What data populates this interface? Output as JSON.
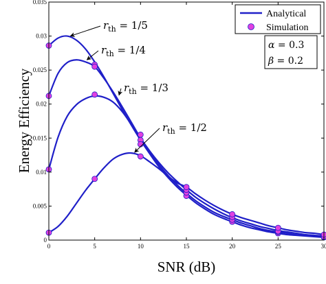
{
  "chart_data": {
    "type": "line",
    "xlabel": "SNR (dB)",
    "ylabel": "Energy Efficiency",
    "xlim": [
      0,
      30
    ],
    "ylim": [
      0,
      0.035
    ],
    "xticks": [
      "0",
      "5",
      "10",
      "15",
      "20",
      "25",
      "30"
    ],
    "yticks": [
      "0",
      "0.005",
      "0.01",
      "0.015",
      "0.02",
      "0.025",
      "0.03",
      "0.035"
    ],
    "grid": false,
    "legend": {
      "position": "top-right",
      "entries": [
        {
          "label": "Analytical",
          "marker": "line",
          "color": "#1f1fc8"
        },
        {
          "label": "Simulation",
          "marker": "circle",
          "color": "#e040e0"
        }
      ]
    },
    "parameters": [
      {
        "symbol": "α",
        "value": "0.3"
      },
      {
        "symbol": "β",
        "value": "0.2"
      }
    ],
    "series": [
      {
        "annotation": {
          "symbol": "r",
          "sub": "th",
          "value": "1/5"
        },
        "analytical": {
          "x": [
            0,
            1,
            2,
            3,
            4,
            5,
            6,
            7,
            8,
            9,
            10,
            11,
            12,
            13,
            14,
            15,
            16,
            17,
            18,
            19,
            20,
            21,
            22,
            23,
            24,
            25,
            26,
            27,
            28,
            29,
            30
          ],
          "y": [
            0.0286,
            0.0297,
            0.03,
            0.0294,
            0.0281,
            0.0262,
            0.024,
            0.0216,
            0.0192,
            0.0169,
            0.0147,
            0.0127,
            0.0108,
            0.0092,
            0.0078,
            0.0066,
            0.0055,
            0.0046,
            0.0038,
            0.0032,
            0.0027,
            0.0022,
            0.0018,
            0.0015,
            0.0012,
            0.001,
            0.0008,
            0.0007,
            0.0006,
            0.0005,
            0.0004
          ]
        },
        "simulation": {
          "x": [
            0,
            5,
            10,
            15,
            20,
            25,
            30
          ],
          "y": [
            0.0286,
            0.0258,
            0.0155,
            0.0065,
            0.0027,
            0.001,
            0.0004
          ]
        }
      },
      {
        "annotation": {
          "symbol": "r",
          "sub": "th",
          "value": "1/4"
        },
        "analytical": {
          "x": [
            0,
            1,
            2,
            3,
            4,
            5,
            6,
            7,
            8,
            9,
            10,
            11,
            12,
            13,
            14,
            15,
            16,
            17,
            18,
            19,
            20,
            21,
            22,
            23,
            24,
            25,
            26,
            27,
            28,
            29,
            30
          ],
          "y": [
            0.0212,
            0.0245,
            0.0261,
            0.0265,
            0.0262,
            0.0255,
            0.0238,
            0.0218,
            0.0196,
            0.0173,
            0.015,
            0.0129,
            0.0111,
            0.0095,
            0.0081,
            0.0069,
            0.0058,
            0.0049,
            0.0041,
            0.0035,
            0.003,
            0.0025,
            0.0021,
            0.0017,
            0.0014,
            0.0012,
            0.001,
            0.0008,
            0.0007,
            0.0006,
            0.0005
          ]
        },
        "simulation": {
          "x": [
            0,
            5,
            10,
            15,
            20,
            25,
            30
          ],
          "y": [
            0.0212,
            0.0255,
            0.0147,
            0.007,
            0.003,
            0.0012,
            0.0005
          ]
        }
      },
      {
        "annotation": {
          "symbol": "r",
          "sub": "th",
          "value": "1/3"
        },
        "analytical": {
          "x": [
            0,
            1,
            2,
            3,
            4,
            5,
            6,
            7,
            8,
            9,
            10,
            11,
            12,
            13,
            14,
            15,
            16,
            17,
            18,
            19,
            20,
            21,
            22,
            23,
            24,
            25,
            26,
            27,
            28,
            29,
            30
          ],
          "y": [
            0.0104,
            0.0151,
            0.0182,
            0.0199,
            0.0208,
            0.0212,
            0.021,
            0.0203,
            0.0189,
            0.017,
            0.015,
            0.0131,
            0.0114,
            0.0099,
            0.0086,
            0.0074,
            0.0063,
            0.0054,
            0.0046,
            0.0039,
            0.0033,
            0.0028,
            0.0024,
            0.002,
            0.0017,
            0.0014,
            0.0012,
            0.001,
            0.0008,
            0.0007,
            0.0006
          ]
        },
        "simulation": {
          "x": [
            0,
            5,
            10,
            15,
            20,
            25,
            30
          ],
          "y": [
            0.0104,
            0.0214,
            0.0141,
            0.0074,
            0.0034,
            0.0013,
            0.0005
          ]
        }
      },
      {
        "annotation": {
          "symbol": "r",
          "sub": "th",
          "value": "1/2"
        },
        "analytical": {
          "x": [
            0,
            1,
            2,
            3,
            4,
            5,
            6,
            7,
            8,
            9,
            10,
            11,
            12,
            13,
            14,
            15,
            16,
            17,
            18,
            19,
            20,
            21,
            22,
            23,
            24,
            25,
            26,
            27,
            28,
            29,
            30
          ],
          "y": [
            0.0011,
            0.002,
            0.0035,
            0.0054,
            0.0073,
            0.009,
            0.0106,
            0.0119,
            0.0126,
            0.0128,
            0.0124,
            0.0115,
            0.0105,
            0.0094,
            0.0084,
            0.0078,
            0.0068,
            0.0059,
            0.0051,
            0.0044,
            0.0038,
            0.0033,
            0.0029,
            0.0025,
            0.0021,
            0.0018,
            0.0015,
            0.0013,
            0.0011,
            0.001,
            0.0008
          ]
        },
        "simulation": {
          "x": [
            0,
            5,
            10,
            15,
            20,
            25,
            30
          ],
          "y": [
            0.0011,
            0.009,
            0.0123,
            0.0078,
            0.0038,
            0.0018,
            0.0008
          ]
        }
      }
    ]
  }
}
